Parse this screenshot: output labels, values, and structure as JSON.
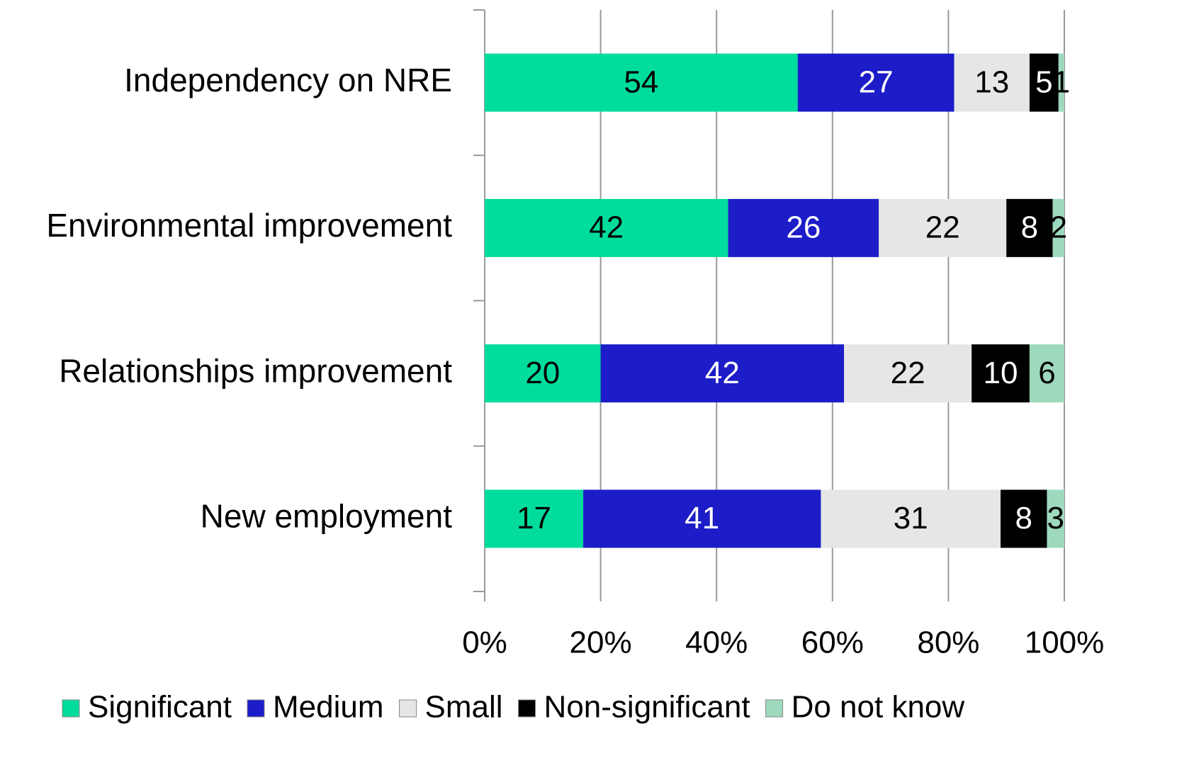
{
  "chart_data": {
    "type": "stacked_barh",
    "categories": [
      "Independency on NRE",
      "Environmental improvement",
      "Relationships improvement",
      "New employment"
    ],
    "series": [
      {
        "name": "Significant",
        "color": "#00dc9c",
        "values": [
          54,
          42,
          20,
          17
        ]
      },
      {
        "name": "Medium",
        "color": "#1c1cc8",
        "values": [
          27,
          26,
          42,
          41
        ]
      },
      {
        "name": "Small",
        "color": "#e6e6e6",
        "values": [
          13,
          22,
          22,
          31
        ]
      },
      {
        "name": "Non-significant",
        "color": "#000000",
        "values": [
          5,
          8,
          10,
          8
        ]
      },
      {
        "name": "Do not know",
        "color": "#9ed9bd",
        "values": [
          1,
          2,
          6,
          3
        ]
      }
    ],
    "xlim": [
      0,
      100
    ],
    "xticks": [
      {
        "value": 0,
        "label": "0%"
      },
      {
        "value": 20,
        "label": "20%"
      },
      {
        "value": 40,
        "label": "40%"
      },
      {
        "value": 60,
        "label": "60%"
      },
      {
        "value": 80,
        "label": "80%"
      },
      {
        "value": 100,
        "label": "100%"
      }
    ],
    "grid": true,
    "legend": "bottom"
  }
}
